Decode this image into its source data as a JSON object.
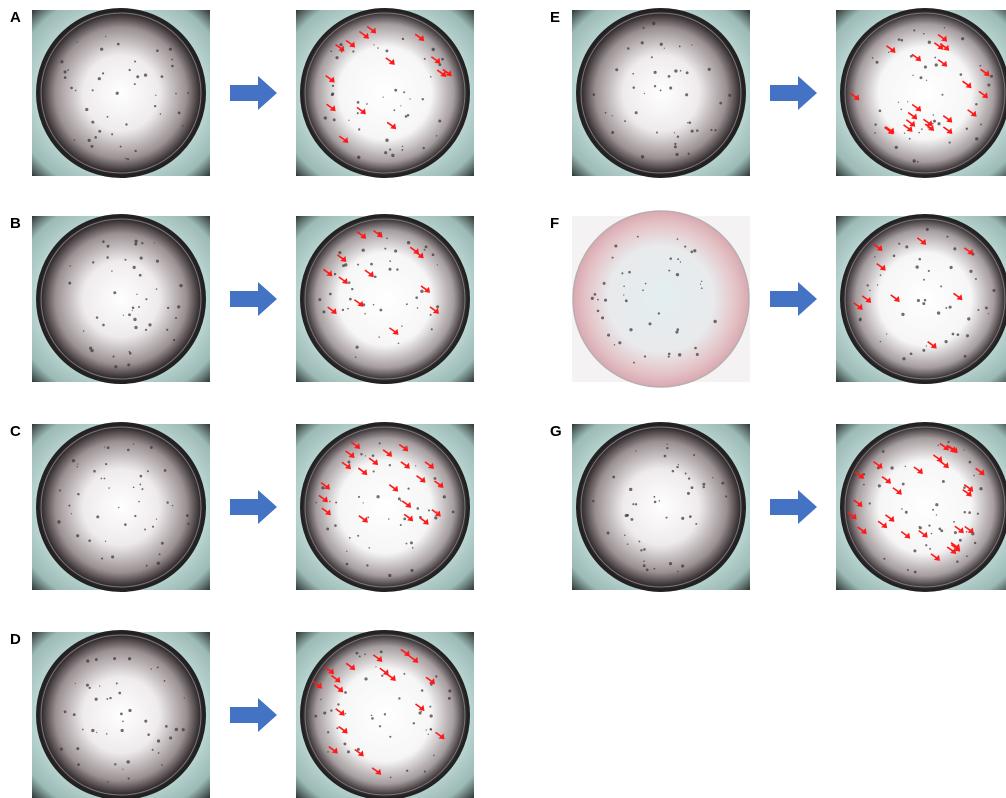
{
  "panels": [
    {
      "label": "A"
    },
    {
      "label": "B"
    },
    {
      "label": "C"
    },
    {
      "label": "D"
    },
    {
      "label": "E"
    },
    {
      "label": "F"
    },
    {
      "label": "G"
    }
  ]
}
